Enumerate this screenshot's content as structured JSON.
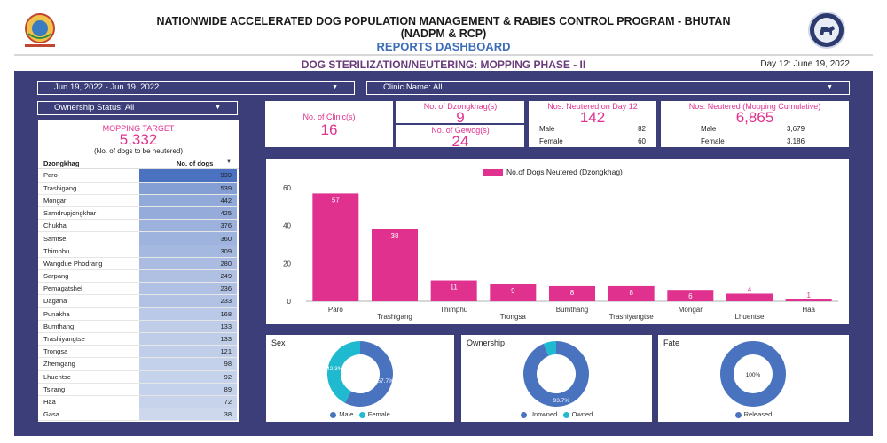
{
  "header": {
    "title_line1": "NATIONWIDE ACCELERATED DOG POPULATION MANAGEMENT & RABIES CONTROL PROGRAM - BHUTAN",
    "title_line2": "(NADPM & RCP)",
    "subtitle": "REPORTS DASHBOARD",
    "strip_title": "DOG STERILIZATION/NEUTERING: MOPPING PHASE - II",
    "day_label": "Day 12: June 19, 2022"
  },
  "filters": {
    "date_range": "Jun 19, 2022 - Jun 19, 2022",
    "clinic": "Clinic Name: All",
    "ownership": "Ownership Status: All"
  },
  "target": {
    "label": "MOPPING TARGET",
    "value": "5,332",
    "note": "(No. of dogs to be neutered)"
  },
  "kpis": {
    "clinics_label": "No. of Clinic(s)",
    "clinics_value": "16",
    "dzongkhag_label": "No. of Dzongkhag(s)",
    "dzongkhag_value": "9",
    "gewog_label": "No. of Gewog(s)",
    "gewog_value": "24",
    "day_neutered_label": "Nos. Neutered on Day 12",
    "day_neutered_value": "142",
    "day_male_label": "Male",
    "day_male_value": "82",
    "day_female_label": "Female",
    "day_female_value": "60",
    "cum_label": "Nos. Neutered (Mopping Cumulative)",
    "cum_value": "6,865",
    "cum_male_label": "Male",
    "cum_male_value": "3,679",
    "cum_female_label": "Female",
    "cum_female_value": "3,186"
  },
  "dz_table": {
    "col1": "Dzongkhag",
    "col2": "No. of dogs",
    "sort_icon": "sort-down-icon",
    "max": 939,
    "bar_color": "#4b72c0",
    "rows": [
      {
        "name": "Paro",
        "value": 939
      },
      {
        "name": "Trashigang",
        "value": 539
      },
      {
        "name": "Mongar",
        "value": 442
      },
      {
        "name": "Samdrupjongkhar",
        "value": 425
      },
      {
        "name": "Chukha",
        "value": 376
      },
      {
        "name": "Samtse",
        "value": 360
      },
      {
        "name": "Thimphu",
        "value": 309
      },
      {
        "name": "Wangdue Phodrang",
        "value": 280
      },
      {
        "name": "Sarpang",
        "value": 249
      },
      {
        "name": "Pemagatshel",
        "value": 236
      },
      {
        "name": "Dagana",
        "value": 233
      },
      {
        "name": "Punakha",
        "value": 168
      },
      {
        "name": "Bumthang",
        "value": 133
      },
      {
        "name": "Trashiyangtse",
        "value": 133
      },
      {
        "name": "Trongsa",
        "value": 121
      },
      {
        "name": "Zhemgang",
        "value": 98
      },
      {
        "name": "Lhuentse",
        "value": 92
      },
      {
        "name": "Tsirang",
        "value": 89
      },
      {
        "name": "Haa",
        "value": 72
      },
      {
        "name": "Gasa",
        "value": 38
      }
    ]
  },
  "chart_data": [
    {
      "type": "bar",
      "legend": "No.of Dogs Neutered (Dzongkhag)",
      "color": "#e0318f",
      "categories": [
        "Paro",
        "Trashigang",
        "Thimphu",
        "Trongsa",
        "Bumthang",
        "Trashiyangtse",
        "Mongar",
        "Lhuentse",
        "Haa"
      ],
      "values": [
        57,
        38,
        11,
        9,
        8,
        8,
        6,
        4,
        1
      ],
      "yticks": [
        0,
        20,
        40,
        60
      ],
      "ylim": [
        0,
        60
      ],
      "legend_position": "top"
    },
    {
      "type": "pie",
      "title": "Sex",
      "labels": [
        "Male",
        "Female"
      ],
      "values": [
        57.7,
        42.3
      ],
      "value_labels": [
        "57.7%",
        "42.3%"
      ],
      "colors": [
        "#4a73bf",
        "#1fbad0"
      ]
    },
    {
      "type": "pie",
      "title": "Ownership",
      "labels": [
        "Unowned",
        "Owned"
      ],
      "values": [
        93.7,
        6.3
      ],
      "value_labels": [
        "93.7%",
        ""
      ],
      "colors": [
        "#4a73bf",
        "#1fbad0"
      ]
    },
    {
      "type": "pie",
      "title": "Fate",
      "labels": [
        "Released"
      ],
      "values": [
        100
      ],
      "value_labels": [
        "100%"
      ],
      "colors": [
        "#4a73bf"
      ]
    }
  ],
  "colors": {
    "panel": "#3b3e78",
    "accent_pink": "#e0318f",
    "accent_blue": "#4a73bf",
    "accent_teal": "#1fbad0"
  },
  "icons": {
    "left_logo": "bhutan-emblem-icon",
    "right_logo": "nadpm-logo-icon",
    "dropdown": "caret-down-icon"
  }
}
